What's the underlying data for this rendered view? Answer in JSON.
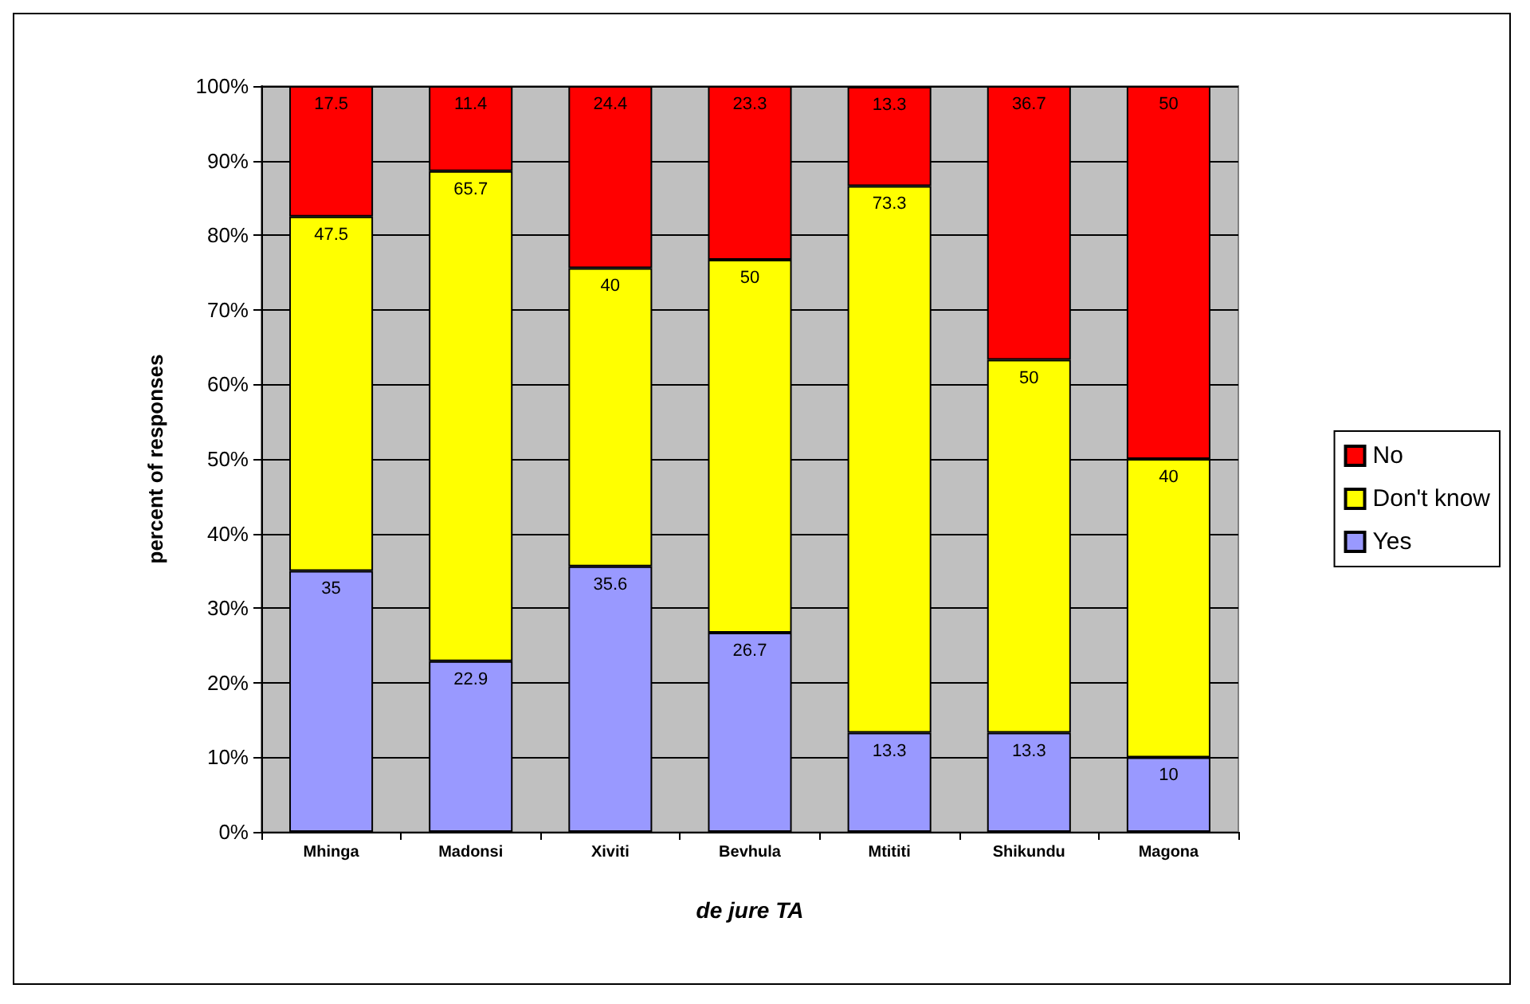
{
  "chart_data": {
    "type": "bar",
    "stacked": true,
    "xlabel": "de jure TA",
    "ylabel": "percent of responses",
    "categories": [
      "Mhinga",
      "Madonsi",
      "Xiviti",
      "Bevhula",
      "Mtititi",
      "Shikundu",
      "Magona"
    ],
    "series": [
      {
        "name": "Yes",
        "color": "#9999ff",
        "values": [
          35,
          22.9,
          35.6,
          26.7,
          13.3,
          13.3,
          10
        ]
      },
      {
        "name": "Don't know",
        "color": "#ffff00",
        "values": [
          47.5,
          65.7,
          40,
          50,
          73.3,
          50,
          40
        ]
      },
      {
        "name": "No",
        "color": "#ff0000",
        "values": [
          17.5,
          11.4,
          24.4,
          23.3,
          13.3,
          36.7,
          50
        ]
      }
    ],
    "ylim": [
      0,
      100
    ],
    "yticks": [
      {
        "value": 0,
        "label": "0%"
      },
      {
        "value": 10,
        "label": "10%"
      },
      {
        "value": 20,
        "label": "20%"
      },
      {
        "value": 30,
        "label": "30%"
      },
      {
        "value": 40,
        "label": "40%"
      },
      {
        "value": 50,
        "label": "50%"
      },
      {
        "value": 60,
        "label": "60%"
      },
      {
        "value": 70,
        "label": "70%"
      },
      {
        "value": 80,
        "label": "80%"
      },
      {
        "value": 90,
        "label": "90%"
      },
      {
        "value": 100,
        "label": "100%"
      }
    ],
    "grid": "y",
    "legend": "right",
    "data_labels": true
  }
}
